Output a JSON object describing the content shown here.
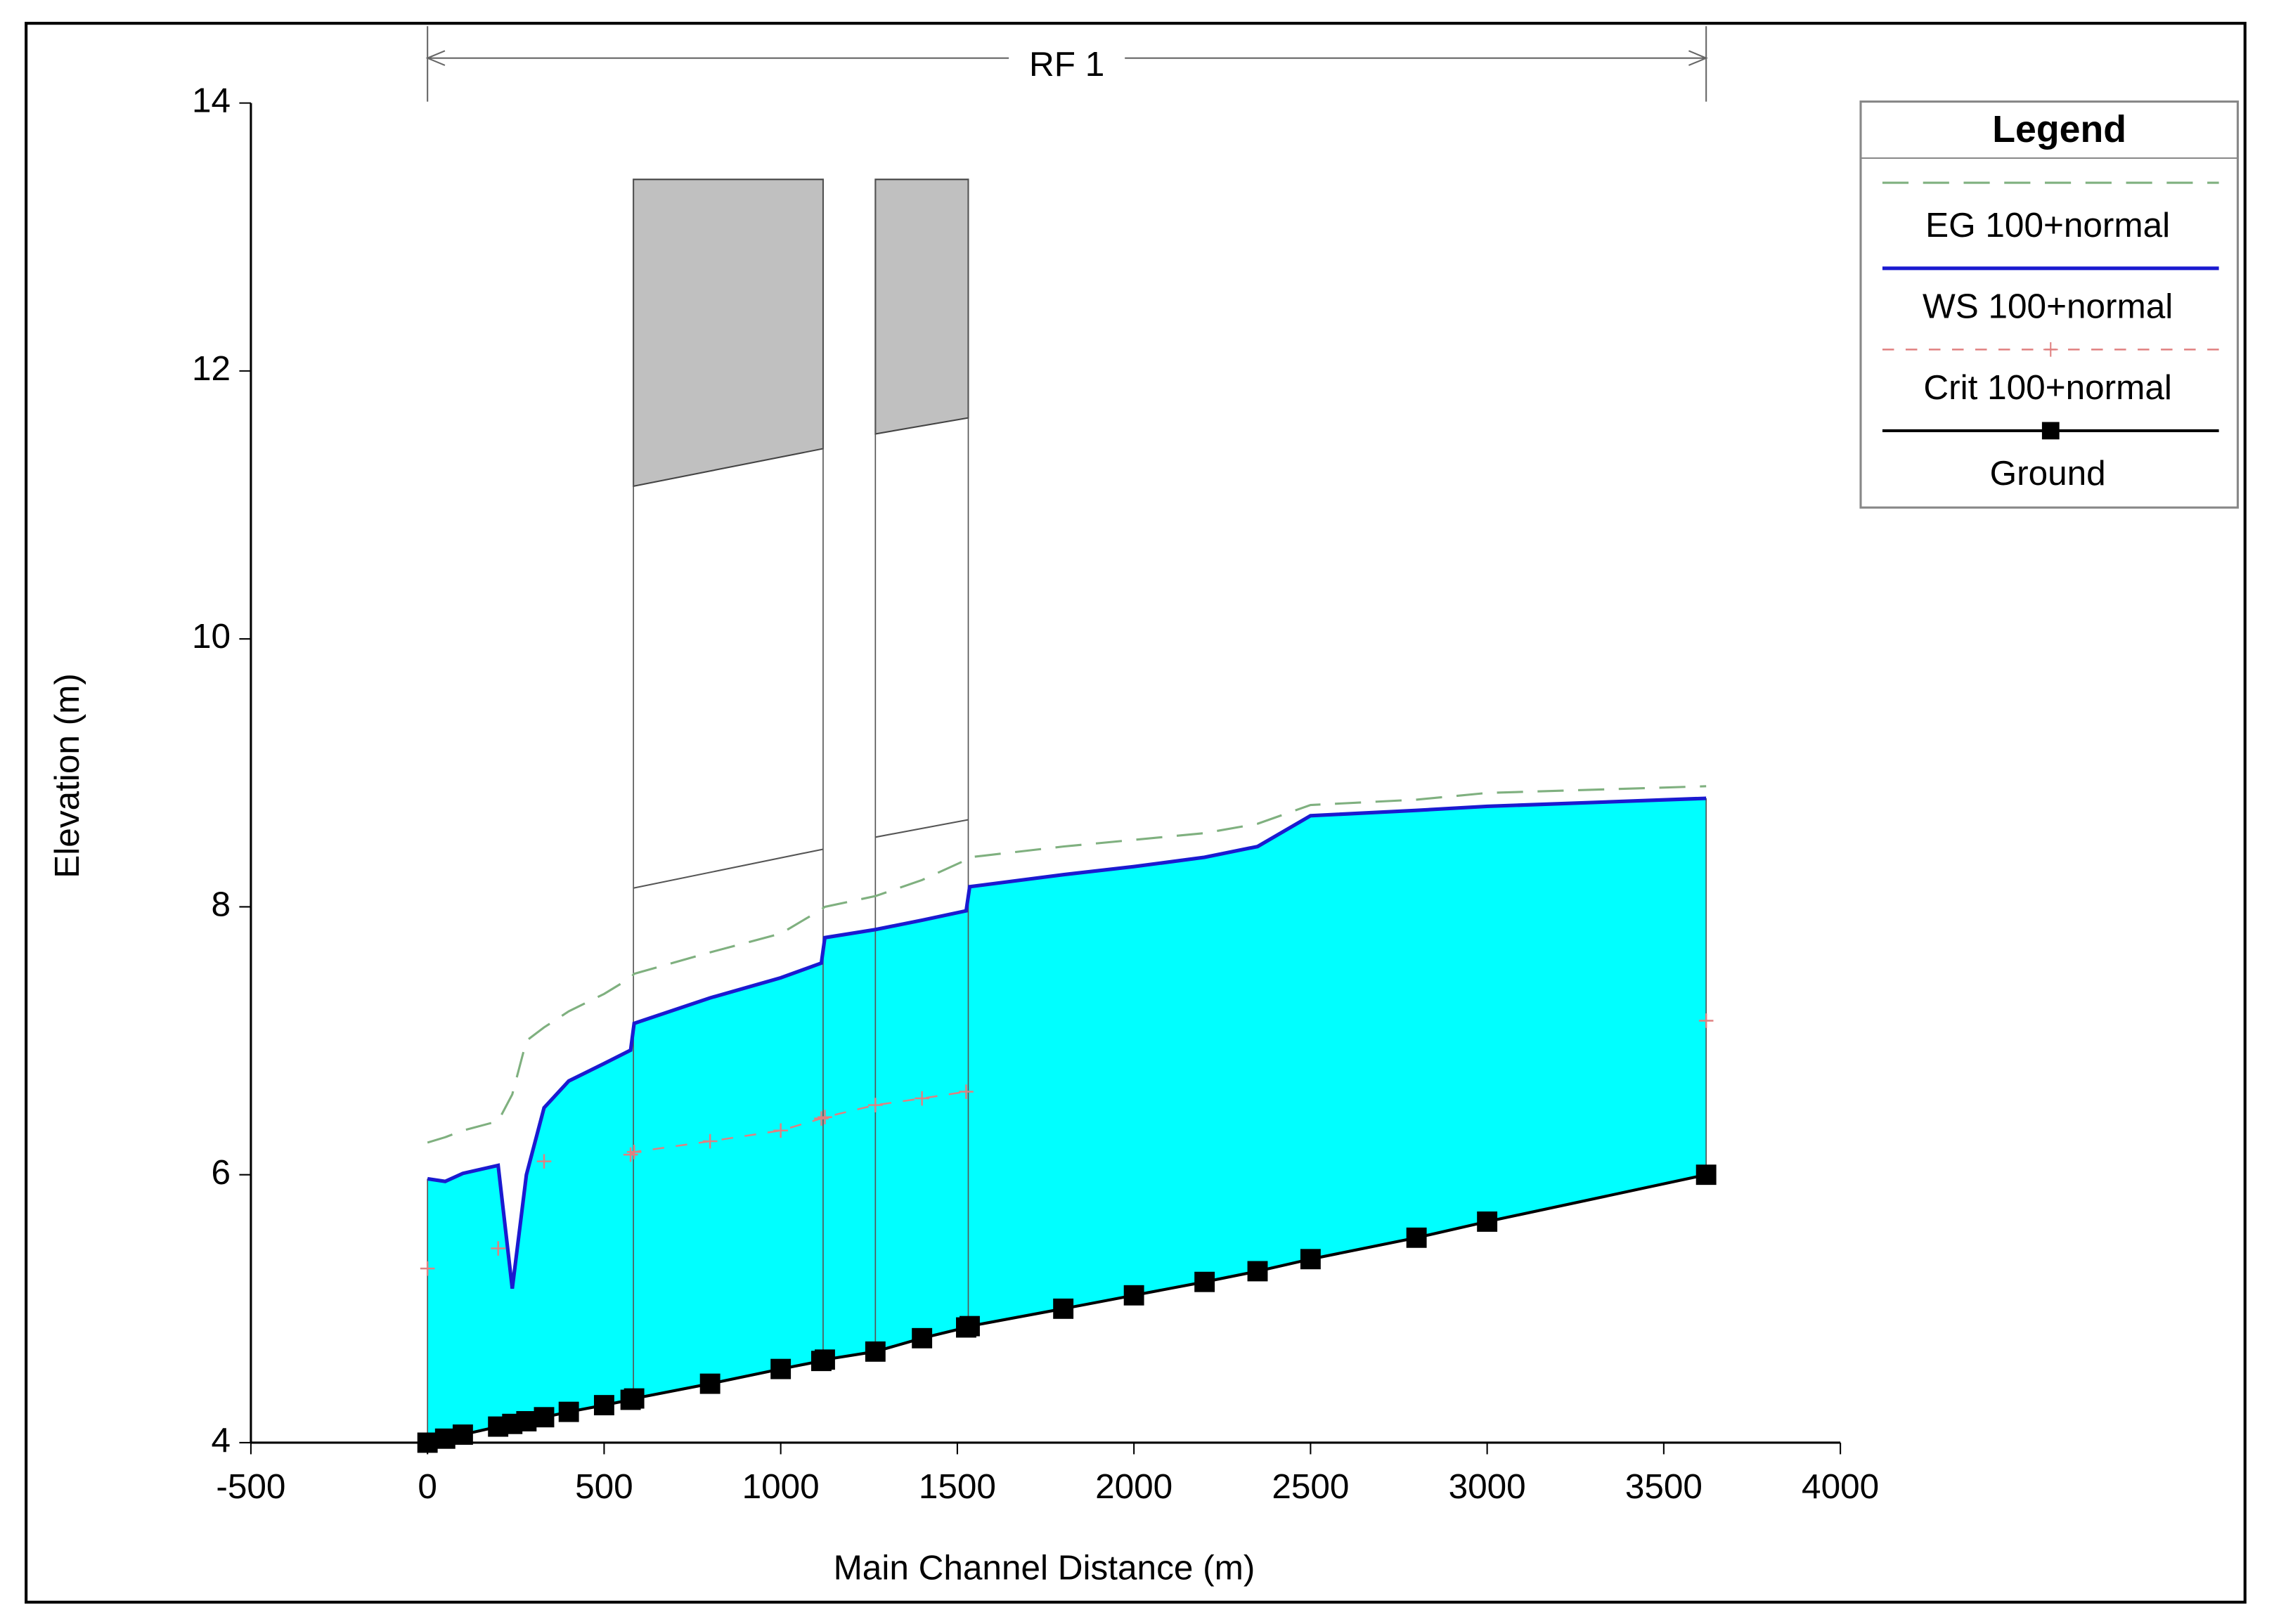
{
  "chart_data": {
    "type": "line",
    "xlabel": "Main Channel Distance (m)",
    "ylabel": "Elevation (m)",
    "xlim": [
      -500,
      4000
    ],
    "xticks": [
      -500,
      0,
      500,
      1000,
      1500,
      2000,
      2500,
      3000,
      3500,
      4000
    ],
    "ylim": [
      4,
      14
    ],
    "yticks": [
      4,
      6,
      8,
      10,
      12,
      14
    ],
    "reach": {
      "label": "RF 1",
      "x": [
        0,
        3620
      ]
    },
    "legend_title": "Legend",
    "legend_position": "upper right",
    "water_color": "#00ffff",
    "x": [
      0,
      50,
      100,
      200,
      240,
      280,
      330,
      400,
      500,
      575,
      585,
      800,
      1000,
      1115,
      1125,
      1268,
      1400,
      1525,
      1535,
      1800,
      2000,
      2200,
      2350,
      2500,
      2800,
      3000,
      3620
    ],
    "series": [
      {
        "name": "EG 100+normal",
        "color": "#7fb07f",
        "style": "dashed",
        "values": [
          6.24,
          6.28,
          6.33,
          6.4,
          6.6,
          7.0,
          7.1,
          7.22,
          7.35,
          7.47,
          7.5,
          7.66,
          7.8,
          7.98,
          8.0,
          8.08,
          8.2,
          8.35,
          8.37,
          8.45,
          8.5,
          8.55,
          8.62,
          8.76,
          8.8,
          8.85,
          8.9
        ]
      },
      {
        "name": "WS 100+normal",
        "color": "#1a1ad0",
        "style": "solid",
        "values": [
          5.97,
          5.95,
          6.01,
          6.07,
          5.15,
          6.0,
          6.5,
          6.7,
          6.83,
          6.93,
          7.13,
          7.32,
          7.47,
          7.58,
          7.77,
          7.83,
          7.9,
          7.97,
          8.15,
          8.24,
          8.3,
          8.37,
          8.45,
          8.68,
          8.72,
          8.75,
          8.81
        ]
      },
      {
        "name": "Crit 100+normal",
        "color": "#e08080",
        "style": "dashed-plus",
        "values": [
          5.3,
          null,
          null,
          5.45,
          null,
          null,
          6.1,
          null,
          null,
          6.15,
          6.17,
          6.25,
          6.33,
          6.42,
          6.43,
          6.52,
          6.57,
          6.62,
          null,
          null,
          null,
          null,
          null,
          null,
          null,
          null,
          7.15
        ]
      },
      {
        "name": "Ground",
        "color": "#000000",
        "style": "solid-square",
        "values": [
          4.0,
          4.03,
          4.06,
          4.12,
          4.14,
          4.16,
          4.19,
          4.23,
          4.28,
          4.32,
          4.33,
          4.44,
          4.55,
          4.61,
          4.62,
          4.68,
          4.78,
          4.86,
          4.87,
          5.0,
          5.1,
          5.2,
          5.28,
          5.37,
          5.53,
          5.65,
          6.0
        ]
      }
    ],
    "bridges": [
      {
        "x": [
          583,
          1120
        ],
        "top": 13.43,
        "high_chord": [
          11.14,
          11.42
        ],
        "low_chord": [
          8.14,
          8.43
        ]
      },
      {
        "x": [
          1268,
          1531
        ],
        "top": 13.43,
        "high_chord": [
          11.53,
          11.65
        ],
        "low_chord": [
          8.52,
          8.65
        ]
      }
    ]
  }
}
